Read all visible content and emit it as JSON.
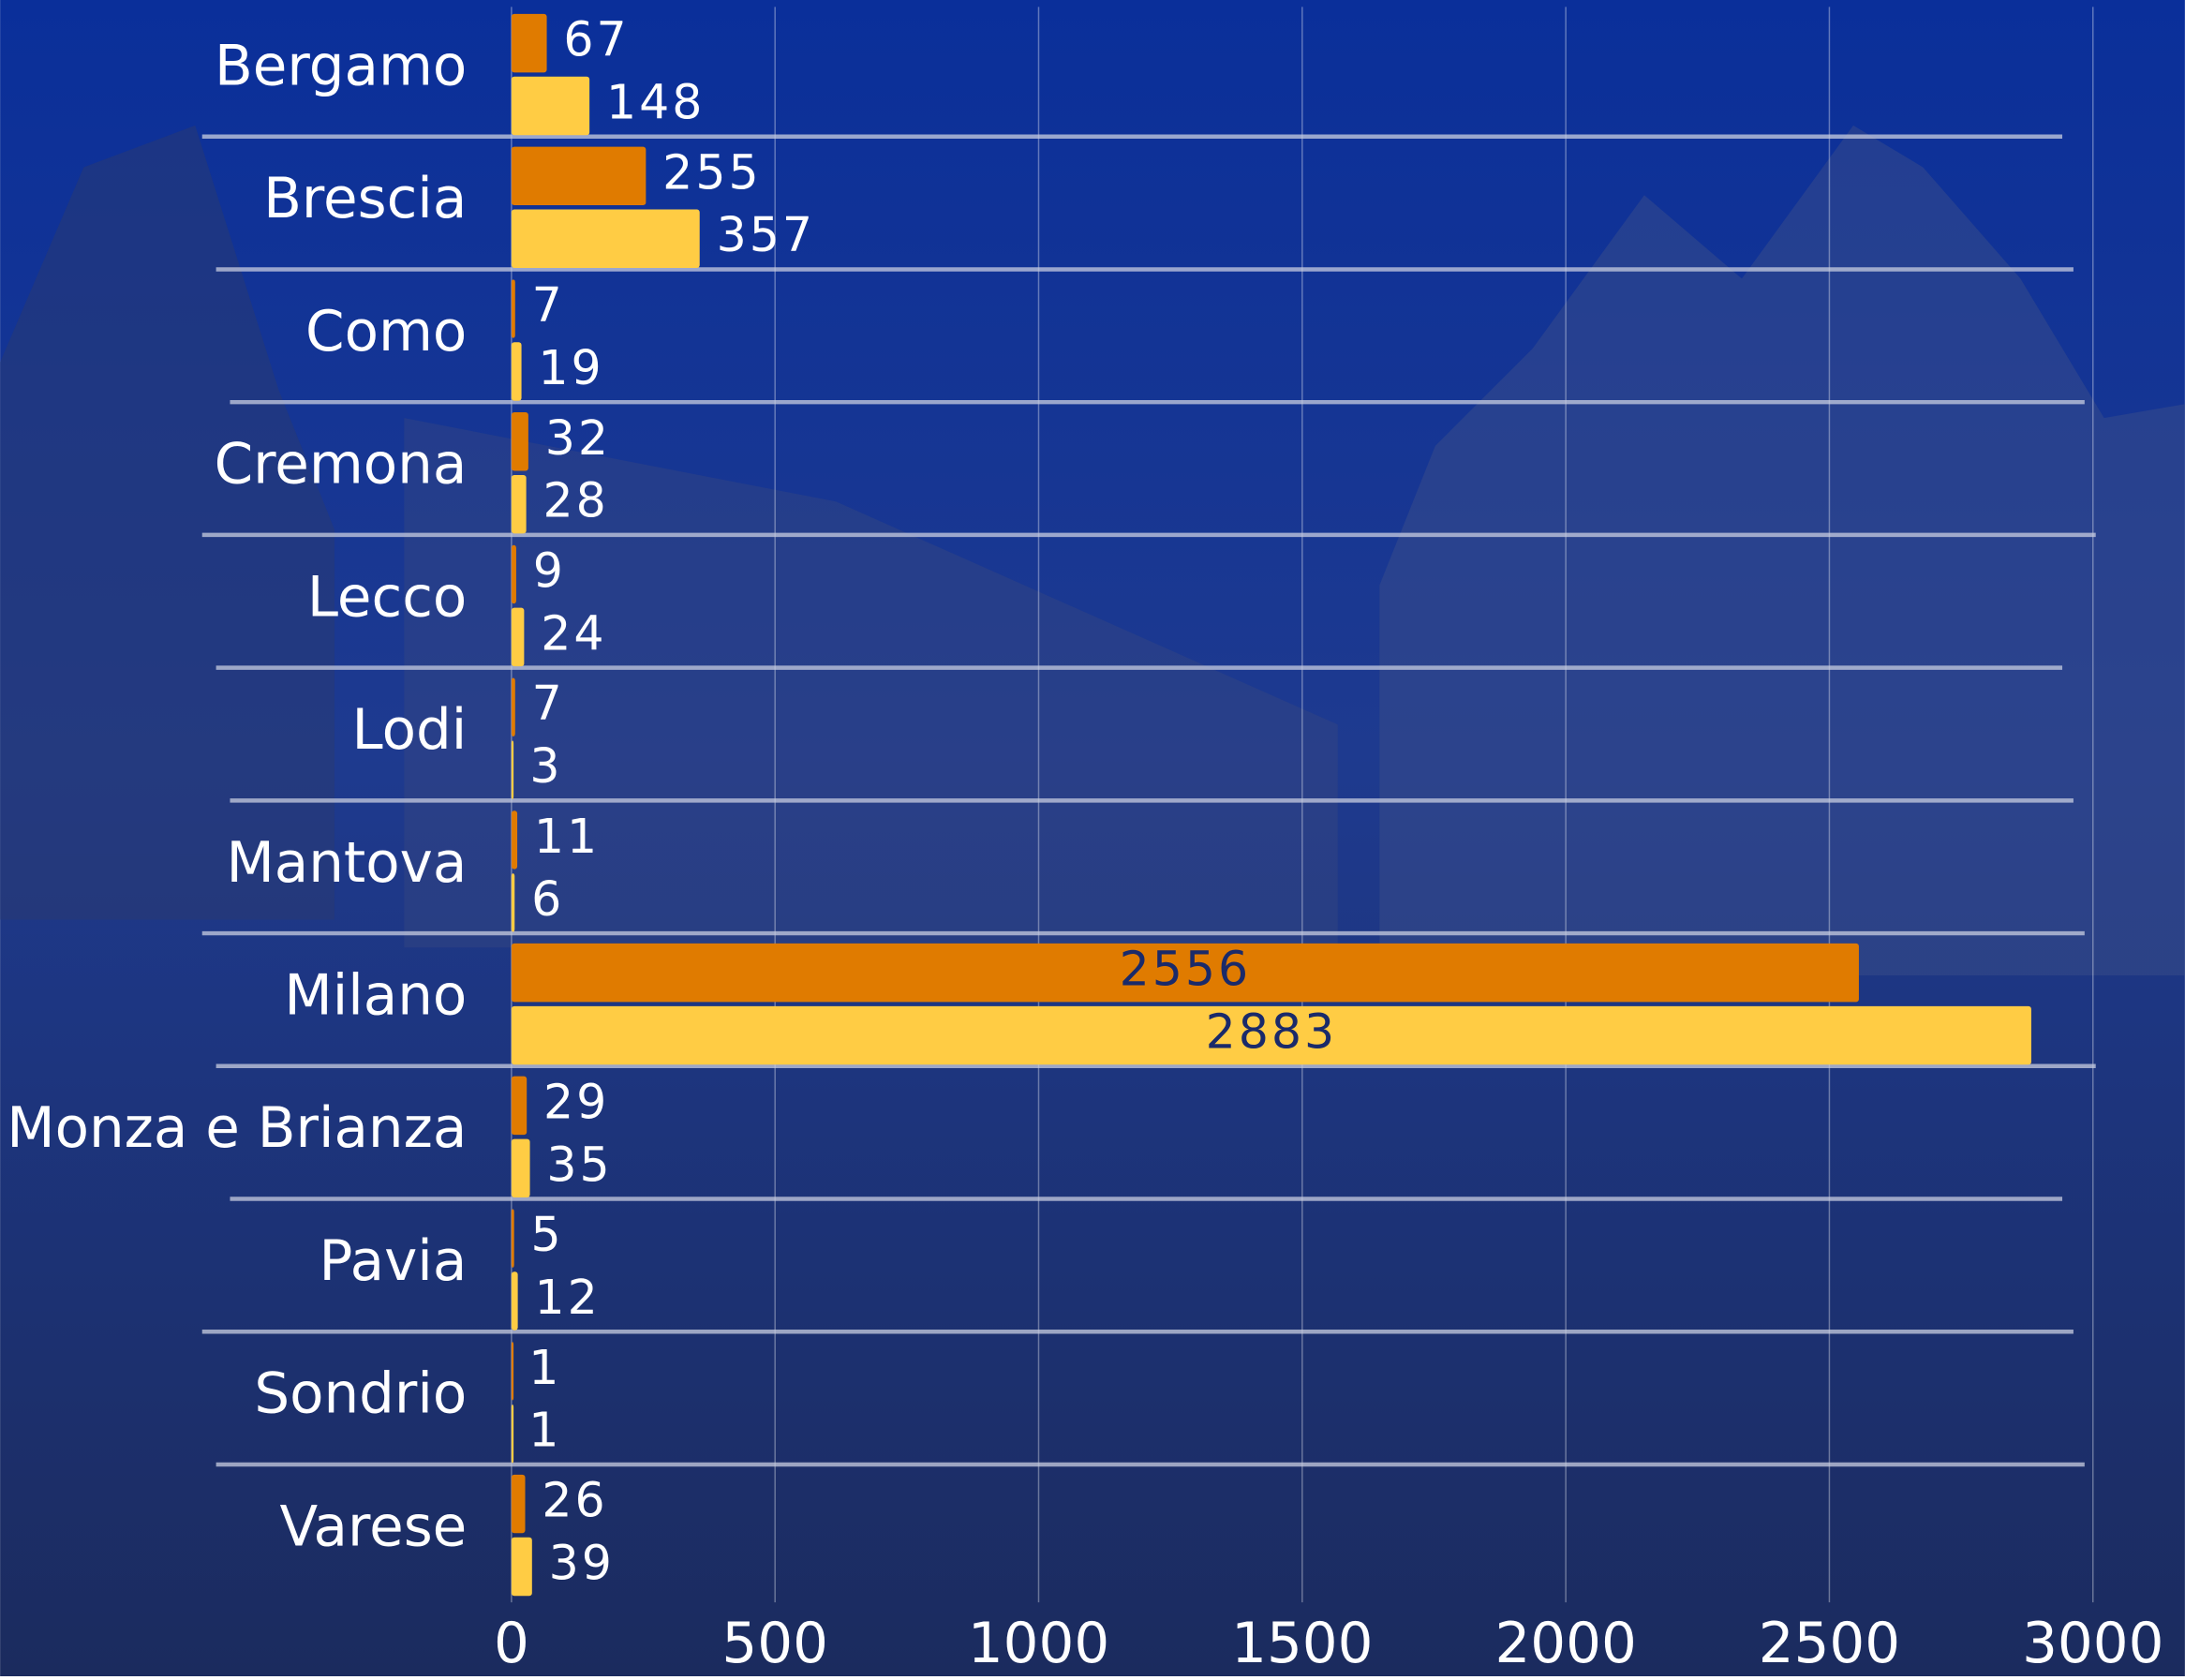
{
  "chart_data": {
    "type": "bar",
    "orientation": "horizontal",
    "categories": [
      "Bergamo",
      "Brescia",
      "Como",
      "Cremona",
      "Lecco",
      "Lodi",
      "Mantova",
      "Milano",
      "Monza e Brianza",
      "Pavia",
      "Sondrio",
      "Varese"
    ],
    "series": [
      {
        "color": "#e07b00",
        "values": [
          67,
          255,
          7,
          32,
          9,
          7,
          11,
          2556,
          29,
          5,
          1,
          26
        ]
      },
      {
        "color": "#ffcc44",
        "values": [
          148,
          357,
          19,
          28,
          24,
          3,
          6,
          2883,
          35,
          12,
          1,
          39
        ]
      }
    ],
    "xlim": [
      0,
      3000
    ],
    "xticks": [
      0,
      500,
      1000,
      1500,
      2000,
      2500,
      3000
    ],
    "grid": true
  }
}
